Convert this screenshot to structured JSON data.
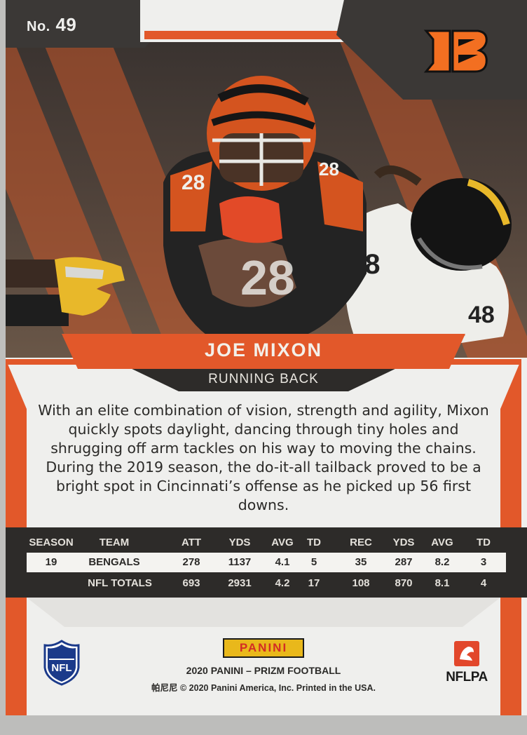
{
  "card": {
    "number_prefix": "No.",
    "number": "49",
    "team_logo_icon": "bengals-b-logo-icon",
    "player_name": "JOE MIXON",
    "position": "RUNNING BACK",
    "bio": "With an elite combination of vision, strength and agility, Mixon quickly spots daylight, dancing through tiny holes and shrugging off arm tackles on his way to moving the chains. During the 2019 season, the do-it-all tailback proved to be a bright spot in Cincinnati’s offense as he picked up 56 first downs."
  },
  "stats": {
    "headers": [
      "SEASON",
      "TEAM",
      "ATT",
      "YDS",
      "AVG",
      "TD",
      "REC",
      "YDS",
      "AVG",
      "TD"
    ],
    "rows": [
      [
        "19",
        "BENGALS",
        "278",
        "1137",
        "4.1",
        "5",
        "35",
        "287",
        "8.2",
        "3"
      ],
      [
        "",
        "NFL TOTALS",
        "693",
        "2931",
        "4.2",
        "17",
        "108",
        "870",
        "8.1",
        "4"
      ]
    ]
  },
  "footer": {
    "panini_badge": "PANINI",
    "brand_line": "2020 PANINI – PRIZM FOOTBALL",
    "copyright": "帕尼尼 © 2020 Panini America, Inc. Printed in the USA.",
    "nflpa": "NFLPA",
    "nfl_logo_icon": "nfl-shield-logo-icon",
    "nflpa_logo_icon": "nflpa-logo-icon"
  },
  "colors": {
    "bengals_orange": "#e2582a",
    "dark": "#2d2b29",
    "panini_yellow": "#e9b81b"
  }
}
